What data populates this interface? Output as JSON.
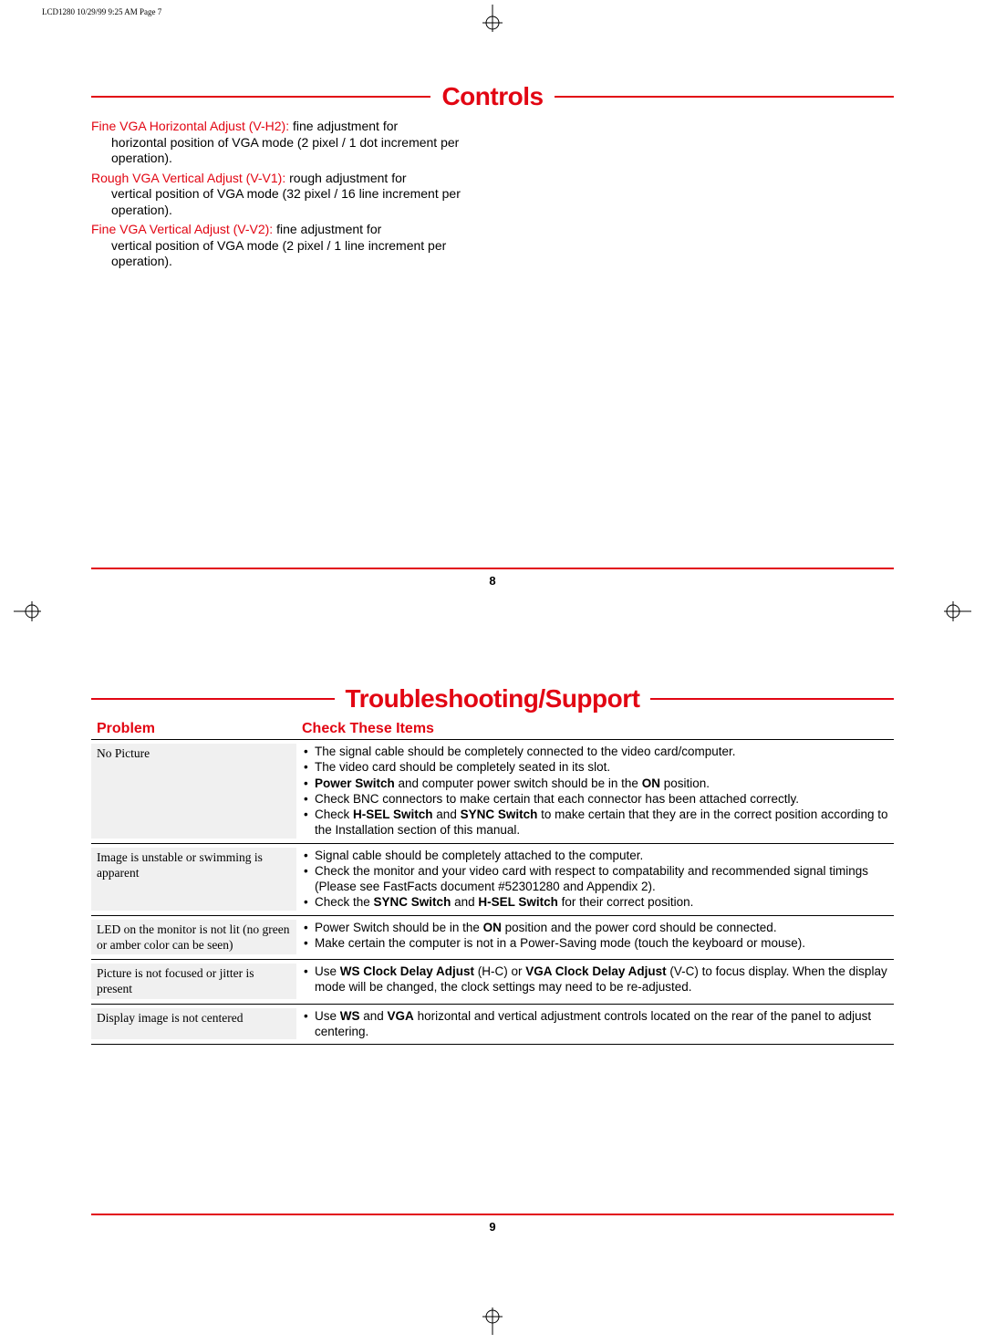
{
  "header_text": "LCD1280  10/29/99 9:25 AM  Page 7",
  "colors": {
    "accent": "#e20613",
    "text": "#000000",
    "row_bg": "#f0f0f0",
    "background": "#ffffff"
  },
  "page8": {
    "heading": "Controls",
    "definitions": [
      {
        "term": "Fine VGA Horizontal Adjust (V-H2):",
        "desc_first": "  fine adjustment for",
        "desc_cont": "horizontal position of VGA mode (2 pixel / 1 dot increment per operation)."
      },
      {
        "term": "Rough VGA Vertical Adjust (V-V1):",
        "desc_first": "  rough adjustment for",
        "desc_cont": "vertical position of VGA mode (32 pixel / 16 line increment per operation)."
      },
      {
        "term": "Fine VGA Vertical Adjust (V-V2):",
        "desc_first": "  fine adjustment for",
        "desc_cont": "vertical position of VGA mode (2 pixel / 1 line increment per operation)."
      }
    ],
    "page_number": "8"
  },
  "page9": {
    "heading": "Troubleshooting/Support",
    "columns": {
      "problem": "Problem",
      "check": "Check These Items"
    },
    "rows": [
      {
        "problem": "No Picture",
        "items": [
          {
            "pre": "The signal cable should be completely connected to the video card/computer."
          },
          {
            "pre": "The video card should be completely seated in its slot."
          },
          {
            "b1": "Power Switch",
            "mid": " and computer power switch should be in the ",
            "b2": "ON",
            "post": " position."
          },
          {
            "pre": "Check BNC connectors to make certain that each connector has been attached correctly."
          },
          {
            "pre": "Check ",
            "b1": "H-SEL Switch",
            "mid": " and ",
            "b2": "SYNC Switch",
            "post": " to make certain that they are in the correct position according to the Installation section of this manual."
          }
        ]
      },
      {
        "problem": "Image is unstable or swimming is apparent",
        "items": [
          {
            "pre": "Signal cable should be completely attached to the computer."
          },
          {
            "pre": "Check the monitor and your video card with respect to compatability and recommended signal timings (Please see FastFacts document #52301280 and Appendix 2)."
          },
          {
            "pre": "Check the ",
            "b1": "SYNC Switch",
            "mid": " and ",
            "b2": "H-SEL Switch",
            "post": " for their correct position."
          }
        ]
      },
      {
        "problem": "LED on the monitor is not lit (no green or amber color can be seen)",
        "items": [
          {
            "pre": "Power Switch should be in the ",
            "b1": "ON",
            "post": " position and the power cord should be connected."
          },
          {
            "pre": "Make certain the computer is not in a Power-Saving mode (touch the keyboard or mouse)."
          }
        ]
      },
      {
        "problem": "Picture is not focused or jitter is present",
        "items": [
          {
            "pre": "Use ",
            "b1": "WS Clock Delay Adjust",
            "mid": " (H-C) or ",
            "b2": "VGA Clock Delay Adjust",
            "post": " (V-C) to focus display. When the display mode will be changed, the clock settings may need to be re-adjusted."
          }
        ]
      },
      {
        "problem": "Display image is not centered",
        "items": [
          {
            "pre": "Use ",
            "b1": "WS",
            "mid": " and ",
            "b2": "VGA",
            "post": " horizontal and vertical adjustment controls located on the rear of the panel to adjust centering."
          }
        ]
      }
    ],
    "page_number": "9"
  }
}
